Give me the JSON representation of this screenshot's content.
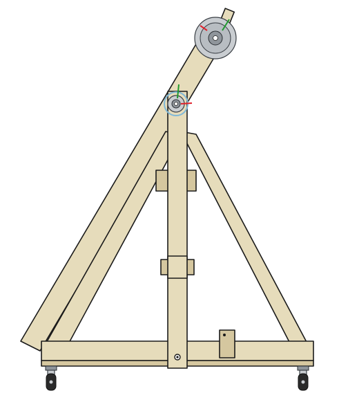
{
  "scene": {
    "description_visible_text": [],
    "colors": {
      "wood": "#e6dcbb",
      "wood_shadow": "#d5c79f",
      "outline": "#1a1a1a",
      "metal": "#c9cdd1",
      "selection_highlight": "#7fb8d8",
      "axis_x": "#e0202a",
      "axis_y": "#1f9a2e"
    },
    "icons": [
      "pulley-icon",
      "pivot-bearing-icon",
      "caster-wheel-icon",
      "bolt-icon",
      "triad-axis-icon"
    ]
  }
}
